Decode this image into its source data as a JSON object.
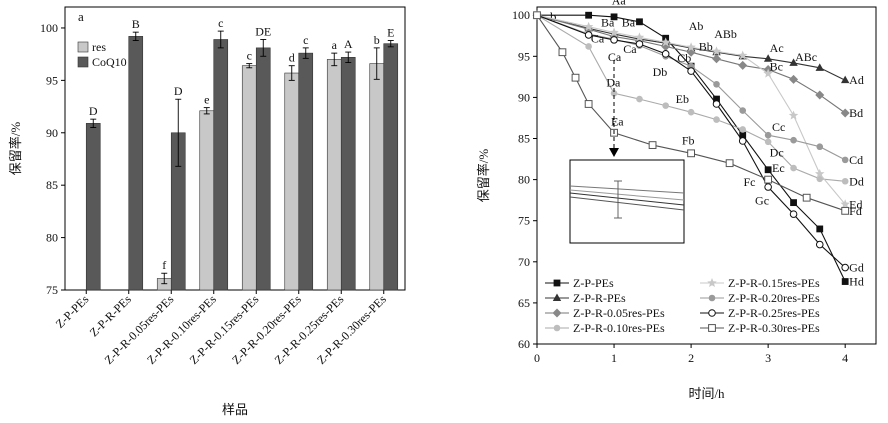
{
  "chart_data": [
    {
      "type": "bar",
      "panel_label": "a",
      "xlabel": "样品",
      "ylabel": "保留率/%",
      "ylim": [
        75,
        102
      ],
      "yticks": [
        75,
        80,
        85,
        90,
        95,
        100
      ],
      "legend_position": "top-left",
      "categories": [
        "Z-P-PEs",
        "Z-P-R-PEs",
        "Z-P-R-0.05res-PEs",
        "Z-P-R-0.10res-PEs",
        "Z-P-R-0.15res-PEs",
        "Z-P-R-0.20res-PEs",
        "Z-P-R-0.25res-PEs",
        "Z-P-R-0.30res-PEs"
      ],
      "series": [
        {
          "name": "res",
          "color": "#c8c8c8",
          "values": [
            null,
            null,
            76.1,
            92.1,
            96.4,
            95.7,
            97.0,
            96.6
          ],
          "errors": [
            null,
            null,
            0.5,
            0.3,
            0.2,
            0.7,
            0.6,
            1.5
          ],
          "letters": [
            "",
            "",
            "f",
            "e",
            "c",
            "d",
            "a",
            "b"
          ]
        },
        {
          "name": "CoQ10",
          "color": "#595959",
          "values": [
            90.9,
            99.2,
            90.0,
            98.9,
            98.1,
            97.6,
            97.2,
            98.5
          ],
          "errors": [
            0.4,
            0.4,
            3.2,
            0.8,
            0.8,
            0.5,
            0.5,
            0.3
          ],
          "letters": [
            "D",
            "B",
            "D",
            "c",
            "DE",
            "c",
            "A",
            "E"
          ]
        }
      ]
    },
    {
      "type": "line",
      "panel_label": "b",
      "xlabel": "时间/h",
      "ylabel": "保留率/%",
      "xlim": [
        0,
        4.4
      ],
      "ylim": [
        60,
        101
      ],
      "xticks": [
        0,
        1,
        2,
        3,
        4
      ],
      "yticks": [
        60,
        65,
        70,
        75,
        80,
        85,
        90,
        95,
        100
      ],
      "series": [
        {
          "name": "Z-P-PEs",
          "marker": "square-filled",
          "line": "#111111",
          "marker_color": "#111111",
          "x": [
            0,
            0.67,
            1.0,
            1.33,
            1.67,
            2.0,
            2.33,
            2.67,
            3.0,
            3.33,
            3.67,
            4.0
          ],
          "y": [
            100,
            100,
            99.8,
            99.2,
            97.2,
            93.8,
            89.8,
            85.4,
            81.2,
            77.2,
            74.0,
            67.6
          ],
          "end_label": "Hd"
        },
        {
          "name": "Z-P-R-PEs",
          "marker": "triangle-filled",
          "line": "#333333",
          "marker_color": "#333333",
          "x": [
            0,
            0.67,
            1.0,
            1.33,
            1.67,
            2.0,
            2.33,
            2.67,
            3.0,
            3.33,
            3.67,
            4.0
          ],
          "y": [
            100,
            98.4,
            97.7,
            97.1,
            96.6,
            96.0,
            95.5,
            95.0,
            94.7,
            94.2,
            93.6,
            92.1
          ],
          "end_label": "Ad"
        },
        {
          "name": "Z-P-R-0.05res-PEs",
          "marker": "diamond-filled",
          "line": "#777777",
          "marker_color": "#888888",
          "x": [
            0,
            0.67,
            1.0,
            1.33,
            1.67,
            2.0,
            2.33,
            2.67,
            3.0,
            3.33,
            3.67,
            4.0
          ],
          "y": [
            100,
            98.3,
            97.4,
            96.9,
            96.2,
            95.5,
            94.7,
            93.9,
            93.4,
            92.2,
            90.3,
            88.1
          ],
          "end_label": "Bd"
        },
        {
          "name": "Z-P-R-0.10res-PEs",
          "marker": "circle-filled",
          "line": "#aaaaaa",
          "marker_color": "#bdbdbd",
          "x": [
            0,
            0.67,
            1.0,
            1.33,
            1.67,
            2.0,
            2.33,
            2.67,
            3.0,
            3.33,
            3.67,
            4.0
          ],
          "y": [
            100,
            96.2,
            90.5,
            89.8,
            89.0,
            88.2,
            87.3,
            86.1,
            84.6,
            81.4,
            80.1,
            79.8
          ],
          "end_label": "Dd"
        },
        {
          "name": "Z-P-R-0.15res-PEs",
          "marker": "star",
          "line": "#c8c8c8",
          "marker_color": "#c8c8c8",
          "x": [
            0,
            0.67,
            1.0,
            1.33,
            1.67,
            2.0,
            2.33,
            2.67,
            3.0,
            3.33,
            3.67,
            4.0
          ],
          "y": [
            100,
            98.6,
            97.9,
            97.3,
            96.7,
            96.1,
            95.6,
            95.1,
            92.9,
            87.8,
            80.7,
            77.0
          ],
          "end_label": "Ed"
        },
        {
          "name": "Z-P-R-0.20res-PEs",
          "marker": "circle-filled",
          "line": "#9a9a9a",
          "marker_color": "#9a9a9a",
          "x": [
            0,
            0.67,
            1.0,
            1.33,
            1.67,
            2.0,
            2.33,
            2.67,
            3.0,
            3.33,
            3.67,
            4.0
          ],
          "y": [
            100,
            97.7,
            97.1,
            96.3,
            95.0,
            93.8,
            91.6,
            88.4,
            85.4,
            84.8,
            84.0,
            82.4
          ],
          "end_label": "Cd"
        },
        {
          "name": "Z-P-R-0.25res-PEs",
          "marker": "circle-open",
          "line": "#111111",
          "marker_color": "#111111",
          "x": [
            0,
            0.67,
            1.0,
            1.33,
            1.67,
            2.0,
            2.33,
            2.67,
            3.0,
            3.33,
            3.67,
            4.0
          ],
          "y": [
            100,
            97.6,
            97.0,
            96.5,
            95.3,
            93.2,
            89.2,
            84.7,
            79.1,
            75.8,
            72.1,
            69.3
          ],
          "end_label": "Gd"
        },
        {
          "name": "Z-P-R-0.30res-PEs",
          "marker": "square-open",
          "line": "#555555",
          "marker_color": "#555555",
          "x": [
            0,
            0.33,
            0.5,
            0.67,
            1.0,
            1.5,
            2.0,
            2.5,
            3.0,
            3.5,
            4.0
          ],
          "y": [
            100,
            95.5,
            92.4,
            89.2,
            85.7,
            84.2,
            83.2,
            82.0,
            80.0,
            77.8,
            76.2
          ],
          "end_label": "Fd"
        }
      ],
      "annotations": [
        {
          "text": "Aa",
          "x": 0.97,
          "y": 101.3
        },
        {
          "text": "Ab",
          "x": 1.97,
          "y": 98.2
        },
        {
          "text": "ABb",
          "x": 2.3,
          "y": 97.2
        },
        {
          "text": "Ac",
          "x": 3.02,
          "y": 95.5
        },
        {
          "text": "ABc",
          "x": 3.35,
          "y": 94.4
        },
        {
          "text": "Ba",
          "x": 0.83,
          "y": 98.6
        },
        {
          "text": "Ba",
          "x": 1.1,
          "y": 98.6
        },
        {
          "text": "Bb",
          "x": 2.1,
          "y": 95.7
        },
        {
          "text": "Bc",
          "x": 3.02,
          "y": 93.3
        },
        {
          "text": "Ca",
          "x": 0.7,
          "y": 96.7
        },
        {
          "text": "Ca",
          "x": 1.12,
          "y": 95.4
        },
        {
          "text": "Ca",
          "x": 0.92,
          "y": 94.4
        },
        {
          "text": "Cb",
          "x": 1.82,
          "y": 94.3
        },
        {
          "text": "Db",
          "x": 1.5,
          "y": 92.6
        },
        {
          "text": "Da",
          "x": 0.9,
          "y": 91.3
        },
        {
          "text": "Eb",
          "x": 1.8,
          "y": 89.3
        },
        {
          "text": "Ea",
          "x": 0.96,
          "y": 86.6
        },
        {
          "text": "Fb",
          "x": 1.88,
          "y": 84.3
        },
        {
          "text": "Cc",
          "x": 3.05,
          "y": 85.9
        },
        {
          "text": "Dc",
          "x": 3.02,
          "y": 82.8
        },
        {
          "text": "Ec",
          "x": 3.05,
          "y": 80.9
        },
        {
          "text": "Fc",
          "x": 2.68,
          "y": 79.2
        },
        {
          "text": "Gc",
          "x": 2.83,
          "y": 77.0
        }
      ],
      "inset_present": true
    }
  ]
}
